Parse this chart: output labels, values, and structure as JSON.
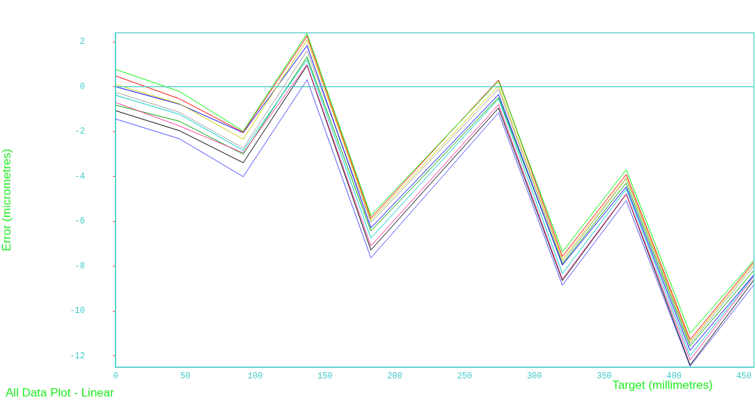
{
  "chart_data": {
    "type": "line",
    "title": "All Data Plot - Linear",
    "xlabel": "Target (millimetres)",
    "ylabel": "Error (micrometres)",
    "x": [
      0,
      45.72,
      91.44,
      137.16,
      182.88,
      274.32,
      320.04,
      365.76,
      411.48,
      457.2
    ],
    "xlim": [
      0,
      457.2
    ],
    "xticks": [
      0,
      50,
      100,
      150,
      200,
      250,
      300,
      350,
      400,
      450
    ],
    "ylim": [
      -12.5,
      2.4
    ],
    "yticks": [
      -12,
      -10,
      -8,
      -6,
      -4,
      -2,
      0,
      2
    ],
    "grid": false,
    "legend": false,
    "marker": "none",
    "line_style": "solid",
    "ref_lines": [
      {
        "axis": "y",
        "value": 0,
        "color": "#40c8c8"
      }
    ],
    "series": [
      {
        "color": "#00ff00",
        "values": [
          0.77,
          -0.21,
          -1.98,
          2.37,
          -5.74,
          0.24,
          -7.36,
          -3.7,
          -10.99,
          -7.74
        ]
      },
      {
        "color": "#ff0000",
        "values": [
          0.48,
          -0.54,
          -2.03,
          2.26,
          -5.86,
          0.3,
          -7.57,
          -3.91,
          -11.27,
          -7.81
        ]
      },
      {
        "color": "#cccc00",
        "values": [
          0.1,
          -0.76,
          -2.34,
          2.09,
          -5.95,
          0.03,
          -7.71,
          -4.06,
          -11.37,
          -7.9
        ]
      },
      {
        "color": "#0000ff",
        "values": [
          0.0,
          -0.78,
          -2.05,
          1.83,
          -6.29,
          -0.35,
          -7.95,
          -4.46,
          -11.75,
          -8.38
        ]
      },
      {
        "color": "#a0a0a0",
        "values": [
          -0.25,
          -1.14,
          -2.74,
          1.6,
          -6.05,
          -0.11,
          -7.81,
          -4.1,
          -11.46,
          -8.0
        ]
      },
      {
        "color": "#00cccc",
        "values": [
          -0.38,
          -1.23,
          -2.84,
          1.21,
          -6.75,
          -0.54,
          -8.33,
          -4.56,
          -11.99,
          -8.4
        ]
      },
      {
        "color": "#ff3399",
        "values": [
          -0.7,
          -1.75,
          -2.95,
          0.98,
          -7.1,
          -0.8,
          -8.57,
          -4.77,
          -12.18,
          -8.45
        ]
      },
      {
        "color": "#00aa00",
        "values": [
          -0.82,
          -1.54,
          -3.01,
          1.33,
          -6.43,
          -0.48,
          -7.9,
          -4.29,
          -11.56,
          -8.19
        ]
      },
      {
        "color": "#000000",
        "values": [
          -1.07,
          -1.96,
          -3.39,
          0.95,
          -7.28,
          -0.95,
          -8.64,
          -4.79,
          -12.41,
          -8.61
        ]
      },
      {
        "color": "#5050ff",
        "values": [
          -1.44,
          -2.32,
          -4.01,
          0.31,
          -7.63,
          -1.16,
          -8.85,
          -5.07,
          -12.46,
          -8.83
        ]
      }
    ]
  }
}
